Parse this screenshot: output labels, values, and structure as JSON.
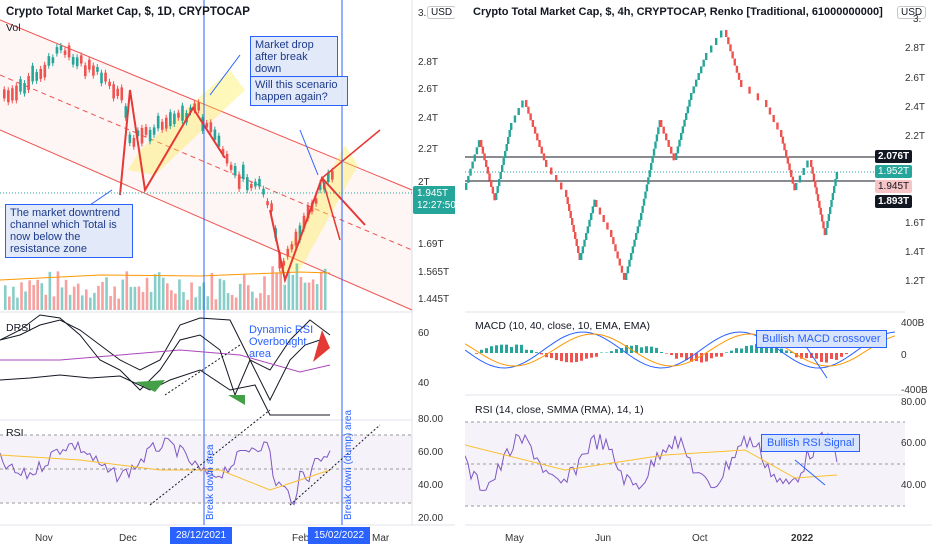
{
  "left": {
    "title": "Crypto Total Market Cap, $, 1D, CRYPTOCAP",
    "vol_label": "Vol",
    "currency": "USD",
    "price_ticks": [
      "3.",
      "2.8T",
      "2.6T",
      "2.4T",
      "2.2T",
      "2T",
      "1.69T",
      "1.565T",
      "1.445T"
    ],
    "price_tag": {
      "price": "1.945T",
      "time": "12:27:50",
      "color": "#26a69a"
    },
    "drsi_label": "DRSI",
    "drsi_ticks": [
      "60",
      "40"
    ],
    "rsi_label": "RSI",
    "rsi_ticks": [
      "80.00",
      "60.00",
      "40.00",
      "20.00"
    ],
    "date_ticks": [
      "Nov",
      "Dec",
      "Feb",
      "Mar"
    ],
    "highlight_dates": [
      "28/12/2021",
      "15/02/2022"
    ],
    "vertical_texts": [
      "Break down area",
      "Break down (dump) area"
    ],
    "annotations": {
      "market_drop": "Market drop after break down",
      "will_this": "Will this scenario happen again?",
      "downtrend": "The  market downtrend channel which Total is now below the resistance zone",
      "dynamic_rsi": "Dynamic RSI Overbought area"
    }
  },
  "right": {
    "title": "Crypto Total Market Cap, $, 4h, CRYPTOCAP, Renko [Traditional, 61000000000]",
    "currency": "USD",
    "price_ticks": [
      "3.",
      "2.8T",
      "2.6T",
      "2.4T",
      "2.2T",
      "1.6T",
      "1.4T",
      "1.2T"
    ],
    "price_tags": [
      {
        "label": "2.076T",
        "color": "#131722"
      },
      {
        "label": "1.952T",
        "color": "#26a69a"
      },
      {
        "label": "1.945T",
        "color": "#f7c5c5"
      },
      {
        "label": "1.893T",
        "color": "#131722"
      }
    ],
    "macd_label": "MACD (10, 40, close, 10, EMA, EMA)",
    "macd_ticks": [
      "400B",
      "0",
      "-400B"
    ],
    "macd_note": "Bullish MACD crossover",
    "rsi_label": "RSI (14, close, SMMA (RMA), 14, 1)",
    "rsi_ticks": [
      "80.00",
      "60.00",
      "40.00"
    ],
    "rsi_note": "Bullish RSI Signal",
    "date_ticks": [
      "May",
      "Jun",
      "Oct",
      "2022"
    ]
  },
  "colors": {
    "up": "#26a69a",
    "down": "#ef5350",
    "accent": "#2962ff",
    "orange": "#ff9800",
    "purple": "#7e57c2"
  }
}
